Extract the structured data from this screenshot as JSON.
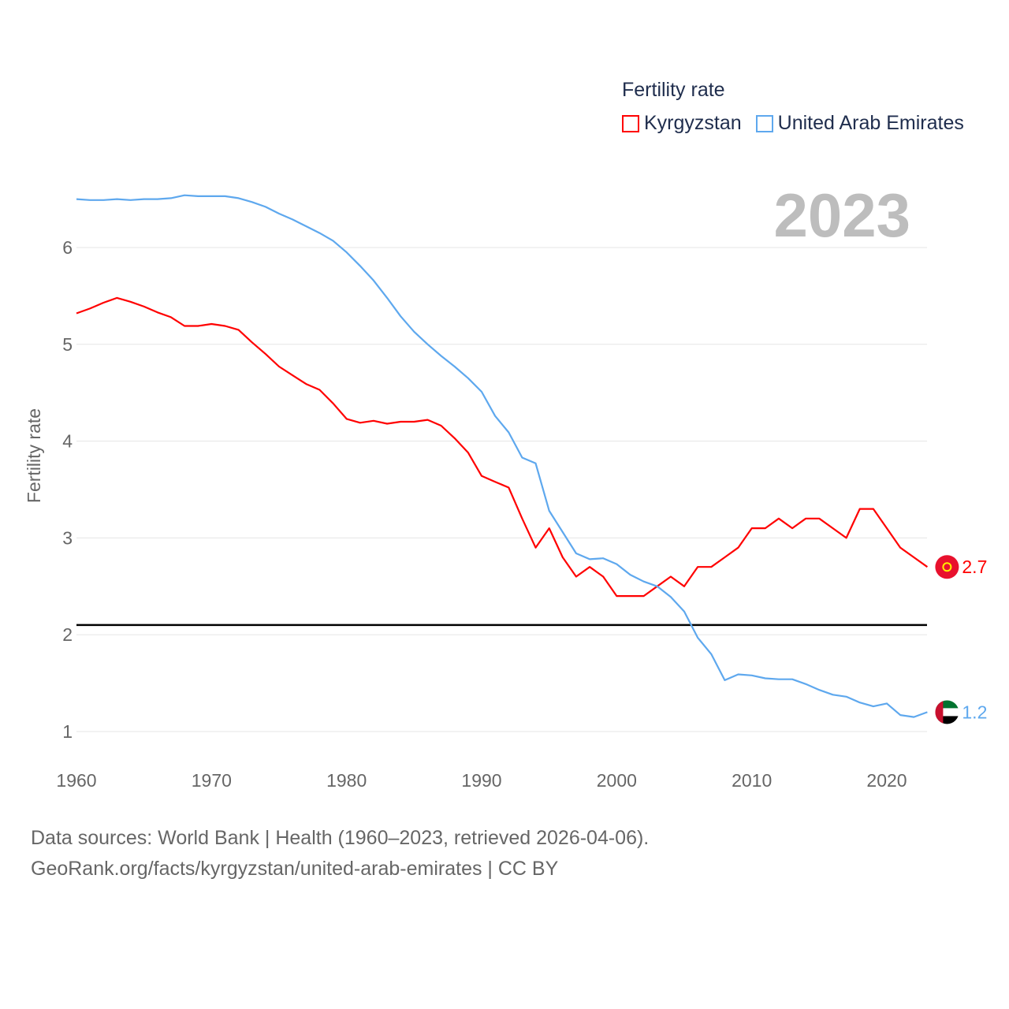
{
  "chart_data": {
    "type": "line",
    "title": "",
    "year_label": "2023",
    "xlabel": "",
    "ylabel": "Fertility rate",
    "xlim": [
      1960,
      2023
    ],
    "ylim": [
      0.7,
      6.8
    ],
    "xticks": [
      1960,
      1970,
      1980,
      1990,
      2000,
      2010,
      2020
    ],
    "yticks": [
      1,
      2,
      3,
      4,
      5,
      6
    ],
    "grid": true,
    "reference_line": 2.1,
    "legend": {
      "title": "Fertility rate",
      "placement": "top-right"
    },
    "x": [
      1960,
      1961,
      1962,
      1963,
      1964,
      1965,
      1966,
      1967,
      1968,
      1969,
      1970,
      1971,
      1972,
      1973,
      1974,
      1975,
      1976,
      1977,
      1978,
      1979,
      1980,
      1981,
      1982,
      1983,
      1984,
      1985,
      1986,
      1987,
      1988,
      1989,
      1990,
      1991,
      1992,
      1993,
      1994,
      1995,
      1996,
      1997,
      1998,
      1999,
      2000,
      2001,
      2002,
      2003,
      2004,
      2005,
      2006,
      2007,
      2008,
      2009,
      2010,
      2011,
      2012,
      2013,
      2014,
      2015,
      2016,
      2017,
      2018,
      2019,
      2020,
      2021,
      2022,
      2023
    ],
    "series": [
      {
        "name": "Kyrgyzstan",
        "color": "#ff0000",
        "end_label": "2.7",
        "values": [
          5.32,
          5.37,
          5.43,
          5.48,
          5.44,
          5.39,
          5.33,
          5.28,
          5.19,
          5.19,
          5.21,
          5.19,
          5.15,
          5.02,
          4.9,
          4.77,
          4.68,
          4.59,
          4.53,
          4.39,
          4.23,
          4.19,
          4.21,
          4.18,
          4.2,
          4.2,
          4.22,
          4.16,
          4.03,
          3.88,
          3.64,
          3.58,
          3.52,
          3.2,
          2.9,
          3.1,
          2.8,
          2.6,
          2.7,
          2.6,
          2.4,
          2.4,
          2.4,
          2.5,
          2.6,
          2.5,
          2.7,
          2.7,
          2.8,
          2.9,
          3.1,
          3.1,
          3.2,
          3.1,
          3.2,
          3.2,
          3.1,
          3.0,
          3.3,
          3.3,
          3.1,
          2.9,
          2.8,
          2.7
        ]
      },
      {
        "name": "United Arab Emirates",
        "color": "#5ea8ee",
        "end_label": "1.2",
        "values": [
          6.5,
          6.49,
          6.49,
          6.5,
          6.49,
          6.5,
          6.5,
          6.51,
          6.54,
          6.53,
          6.53,
          6.53,
          6.51,
          6.47,
          6.42,
          6.35,
          6.29,
          6.22,
          6.15,
          6.07,
          5.95,
          5.81,
          5.66,
          5.48,
          5.29,
          5.13,
          5.0,
          4.88,
          4.77,
          4.65,
          4.51,
          4.26,
          4.09,
          3.83,
          3.77,
          3.28,
          3.06,
          2.84,
          2.78,
          2.79,
          2.73,
          2.62,
          2.55,
          2.5,
          2.39,
          2.24,
          1.97,
          1.8,
          1.53,
          1.59,
          1.58,
          1.55,
          1.54,
          1.54,
          1.49,
          1.43,
          1.38,
          1.36,
          1.3,
          1.26,
          1.29,
          1.17,
          1.15,
          1.2
        ]
      }
    ]
  },
  "footer": {
    "line1": "Data sources: World Bank | Health (1960–2023, retrieved 2026-04-06).",
    "line2": "GeoRank.org/facts/kyrgyzstan/united-arab-emirates | CC BY"
  }
}
